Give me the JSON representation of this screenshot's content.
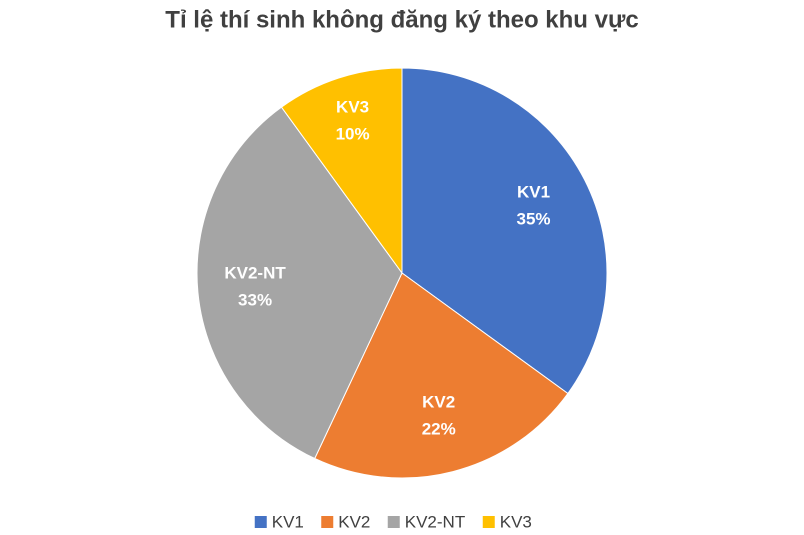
{
  "chart_data": {
    "type": "pie",
    "title": "Tỉ lệ thí sinh không đăng ký theo khu vực",
    "categories": [
      "KV1",
      "KV2",
      "KV2-NT",
      "KV3"
    ],
    "values": [
      35,
      22,
      33,
      10
    ],
    "value_labels": [
      "35%",
      "22%",
      "33%",
      "10%"
    ],
    "colors": [
      "#4472c4",
      "#ed7d31",
      "#a5a5a5",
      "#ffc000"
    ],
    "legend": "bottom"
  }
}
